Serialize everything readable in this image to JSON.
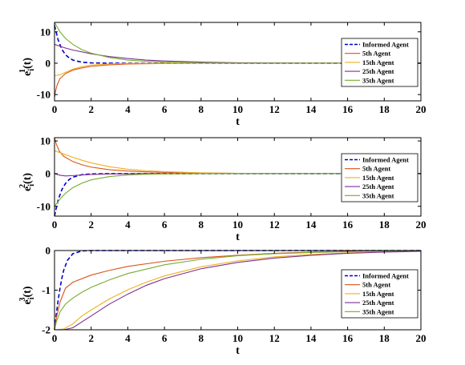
{
  "chart_data": [
    {
      "type": "line",
      "xlabel": "t",
      "ylabel": "e_i^1(t)",
      "ylabel_main": "e",
      "ylabel_sup": "1",
      "ylabel_sub": "i",
      "ylabel_arg": "(t)",
      "xlim": [
        0,
        20
      ],
      "ylim": [
        -12,
        13
      ],
      "xticks": [
        0,
        2,
        4,
        6,
        8,
        10,
        12,
        14,
        16,
        18,
        20
      ],
      "yticks": [
        -10,
        0,
        10
      ],
      "legend_position": "right",
      "series": [
        {
          "name": "Informed Agent",
          "color": "#0000CC",
          "dash": "dashed",
          "points": [
            [
              0,
              12
            ],
            [
              0.2,
              7.4
            ],
            [
              0.4,
              4.4
            ],
            [
              0.6,
              2.7
            ],
            [
              0.8,
              1.7
            ],
            [
              1.0,
              1.0
            ],
            [
              1.5,
              0.3
            ],
            [
              2,
              0.1
            ],
            [
              3,
              0.0
            ],
            [
              20,
              0.0
            ]
          ]
        },
        {
          "name": "5th Agent",
          "color": "#D95319",
          "dash": "solid",
          "points": [
            [
              0,
              -11
            ],
            [
              0.05,
              -9.0
            ],
            [
              0.15,
              -6.8
            ],
            [
              0.3,
              -4.9
            ],
            [
              0.6,
              -3.3
            ],
            [
              1,
              -2.2
            ],
            [
              1.5,
              -1.5
            ],
            [
              2,
              -1.0
            ],
            [
              3,
              -0.5
            ],
            [
              4,
              -0.25
            ],
            [
              6,
              -0.08
            ],
            [
              8,
              0.0
            ],
            [
              20,
              0.0
            ]
          ]
        },
        {
          "name": "15th Agent",
          "color": "#EDB120",
          "dash": "solid",
          "points": [
            [
              0,
              -4
            ],
            [
              0.3,
              -3.7
            ],
            [
              0.6,
              -2.9
            ],
            [
              1,
              -1.9
            ],
            [
              1.5,
              -1.1
            ],
            [
              2,
              -0.6
            ],
            [
              3,
              -0.2
            ],
            [
              4,
              -0.05
            ],
            [
              6,
              0.0
            ],
            [
              20,
              0.0
            ]
          ]
        },
        {
          "name": "25th Agent",
          "color": "#7E2F8E",
          "dash": "solid",
          "points": [
            [
              0,
              6
            ],
            [
              0.5,
              5.0
            ],
            [
              1,
              4.2
            ],
            [
              2,
              3.0
            ],
            [
              3,
              2.1
            ],
            [
              4,
              1.5
            ],
            [
              5,
              1.0
            ],
            [
              6,
              0.7
            ],
            [
              8,
              0.35
            ],
            [
              10,
              0.15
            ],
            [
              12,
              0.07
            ],
            [
              14,
              0.0
            ],
            [
              20,
              0.0
            ]
          ]
        },
        {
          "name": "35th Agent",
          "color": "#77AC30",
          "dash": "solid",
          "points": [
            [
              0,
              13
            ],
            [
              0.3,
              10.0
            ],
            [
              0.6,
              7.9
            ],
            [
              1,
              6.0
            ],
            [
              1.5,
              4.3
            ],
            [
              2,
              3.2
            ],
            [
              3,
              1.8
            ],
            [
              4,
              1.0
            ],
            [
              5,
              0.6
            ],
            [
              6,
              0.35
            ],
            [
              8,
              0.12
            ],
            [
              10,
              0.0
            ],
            [
              20,
              0.0
            ]
          ]
        }
      ]
    },
    {
      "type": "line",
      "xlabel": "t",
      "ylabel": "e_i^2(t)",
      "ylabel_main": "e",
      "ylabel_sup": "2",
      "ylabel_sub": "i",
      "ylabel_arg": "(t)",
      "xlim": [
        0,
        20
      ],
      "ylim": [
        -13,
        11
      ],
      "xticks": [
        0,
        2,
        4,
        6,
        8,
        10,
        12,
        14,
        16,
        18,
        20
      ],
      "yticks": [
        -10,
        0,
        10
      ],
      "legend_position": "right",
      "series": [
        {
          "name": "Informed Agent",
          "color": "#0000CC",
          "dash": "dashed",
          "points": [
            [
              0,
              -13
            ],
            [
              0.2,
              -8.0
            ],
            [
              0.4,
              -4.9
            ],
            [
              0.6,
              -3.0
            ],
            [
              0.8,
              -1.8
            ],
            [
              1.0,
              -1.1
            ],
            [
              1.5,
              -0.3
            ],
            [
              2,
              -0.1
            ],
            [
              3,
              0.0
            ],
            [
              20,
              0.0
            ]
          ]
        },
        {
          "name": "5th Agent",
          "color": "#D95319",
          "dash": "solid",
          "points": [
            [
              0,
              11
            ],
            [
              0.1,
              9.0
            ],
            [
              0.25,
              7.0
            ],
            [
              0.5,
              5.3
            ],
            [
              1,
              3.7
            ],
            [
              1.5,
              2.7
            ],
            [
              2,
              2.0
            ],
            [
              3,
              1.2
            ],
            [
              4,
              0.8
            ],
            [
              5,
              0.55
            ],
            [
              6,
              0.4
            ],
            [
              8,
              0.2
            ],
            [
              10,
              0.1
            ],
            [
              14,
              0.0
            ],
            [
              20,
              0.0
            ]
          ]
        },
        {
          "name": "15th Agent",
          "color": "#EDB120",
          "dash": "solid",
          "points": [
            [
              0,
              7
            ],
            [
              0.5,
              6.0
            ],
            [
              1,
              5.0
            ],
            [
              1.5,
              4.1
            ],
            [
              2,
              3.3
            ],
            [
              3,
              2.1
            ],
            [
              4,
              1.35
            ],
            [
              5,
              0.9
            ],
            [
              6,
              0.6
            ],
            [
              8,
              0.25
            ],
            [
              10,
              0.1
            ],
            [
              14,
              0.0
            ],
            [
              20,
              0.0
            ]
          ]
        },
        {
          "name": "25th Agent",
          "color": "#7E2F8E",
          "dash": "solid",
          "points": [
            [
              0,
              0
            ],
            [
              0.3,
              -0.5
            ],
            [
              0.6,
              -0.7
            ],
            [
              1,
              -0.6
            ],
            [
              1.5,
              -0.4
            ],
            [
              2,
              -0.25
            ],
            [
              3,
              -0.1
            ],
            [
              5,
              0.0
            ],
            [
              20,
              0.0
            ]
          ]
        },
        {
          "name": "35th Agent",
          "color": "#77AC30",
          "dash": "solid",
          "points": [
            [
              0,
              -10
            ],
            [
              0.3,
              -7.8
            ],
            [
              0.6,
              -6.0
            ],
            [
              1,
              -4.3
            ],
            [
              1.5,
              -2.9
            ],
            [
              2,
              -1.9
            ],
            [
              3,
              -0.9
            ],
            [
              4,
              -0.4
            ],
            [
              5,
              -0.2
            ],
            [
              6,
              -0.1
            ],
            [
              8,
              0.0
            ],
            [
              20,
              0.0
            ]
          ]
        }
      ]
    },
    {
      "type": "line",
      "xlabel": "t",
      "ylabel": "e_i^3(t)",
      "ylabel_main": "e",
      "ylabel_sup": "3",
      "ylabel_sub": "i",
      "ylabel_arg": "(t)",
      "xlim": [
        0,
        20
      ],
      "ylim": [
        -2,
        0
      ],
      "xticks": [
        0,
        2,
        4,
        6,
        8,
        10,
        12,
        14,
        16,
        18,
        20
      ],
      "yticks": [
        -2,
        -1,
        0
      ],
      "legend_position": "right",
      "series": [
        {
          "name": "Informed Agent",
          "color": "#0000CC",
          "dash": "dashed",
          "points": [
            [
              0,
              -2.0
            ],
            [
              0.1,
              -1.6
            ],
            [
              0.2,
              -1.25
            ],
            [
              0.3,
              -0.95
            ],
            [
              0.4,
              -0.7
            ],
            [
              0.5,
              -0.5
            ],
            [
              0.7,
              -0.25
            ],
            [
              1.0,
              -0.08
            ],
            [
              1.5,
              -0.01
            ],
            [
              2,
              0.0
            ],
            [
              20,
              0.0
            ]
          ]
        },
        {
          "name": "5th Agent",
          "color": "#D95319",
          "dash": "solid",
          "points": [
            [
              0,
              -2.0
            ],
            [
              0.1,
              -1.7
            ],
            [
              0.3,
              -1.3
            ],
            [
              0.6,
              -0.95
            ],
            [
              1,
              -0.8
            ],
            [
              2,
              -0.62
            ],
            [
              3,
              -0.5
            ],
            [
              4,
              -0.4
            ],
            [
              6,
              -0.27
            ],
            [
              8,
              -0.18
            ],
            [
              10,
              -0.12
            ],
            [
              12,
              -0.07
            ],
            [
              14,
              -0.04
            ],
            [
              16,
              -0.02
            ],
            [
              18,
              -0.01
            ],
            [
              20,
              0.0
            ]
          ]
        },
        {
          "name": "15th Agent",
          "color": "#EDB120",
          "dash": "solid",
          "points": [
            [
              0,
              -2.0
            ],
            [
              0.5,
              -1.98
            ],
            [
              1,
              -1.85
            ],
            [
              1.5,
              -1.65
            ],
            [
              2,
              -1.5
            ],
            [
              3,
              -1.22
            ],
            [
              4,
              -0.99
            ],
            [
              5,
              -0.8
            ],
            [
              6,
              -0.64
            ],
            [
              8,
              -0.41
            ],
            [
              10,
              -0.26
            ],
            [
              12,
              -0.16
            ],
            [
              14,
              -0.1
            ],
            [
              16,
              -0.06
            ],
            [
              18,
              -0.03
            ],
            [
              20,
              -0.01
            ]
          ]
        },
        {
          "name": "25th Agent",
          "color": "#7E2F8E",
          "dash": "solid",
          "points": [
            [
              0,
              -2.0
            ],
            [
              0.5,
              -2.0
            ],
            [
              1,
              -1.95
            ],
            [
              1.5,
              -1.8
            ],
            [
              2,
              -1.65
            ],
            [
              3,
              -1.35
            ],
            [
              4,
              -1.1
            ],
            [
              5,
              -0.88
            ],
            [
              6,
              -0.71
            ],
            [
              8,
              -0.46
            ],
            [
              10,
              -0.3
            ],
            [
              12,
              -0.19
            ],
            [
              14,
              -0.12
            ],
            [
              16,
              -0.07
            ],
            [
              18,
              -0.04
            ],
            [
              20,
              -0.02
            ]
          ]
        },
        {
          "name": "35th Agent",
          "color": "#77AC30",
          "dash": "solid",
          "points": [
            [
              0,
              -2.0
            ],
            [
              0.1,
              -1.8
            ],
            [
              0.3,
              -1.55
            ],
            [
              0.6,
              -1.35
            ],
            [
              1,
              -1.2
            ],
            [
              1.5,
              -1.05
            ],
            [
              2,
              -0.93
            ],
            [
              3,
              -0.74
            ],
            [
              4,
              -0.58
            ],
            [
              6,
              -0.36
            ],
            [
              8,
              -0.22
            ],
            [
              10,
              -0.13
            ],
            [
              12,
              -0.08
            ],
            [
              14,
              -0.05
            ],
            [
              16,
              -0.03
            ],
            [
              18,
              -0.01
            ],
            [
              20,
              0.0
            ]
          ]
        }
      ]
    }
  ]
}
